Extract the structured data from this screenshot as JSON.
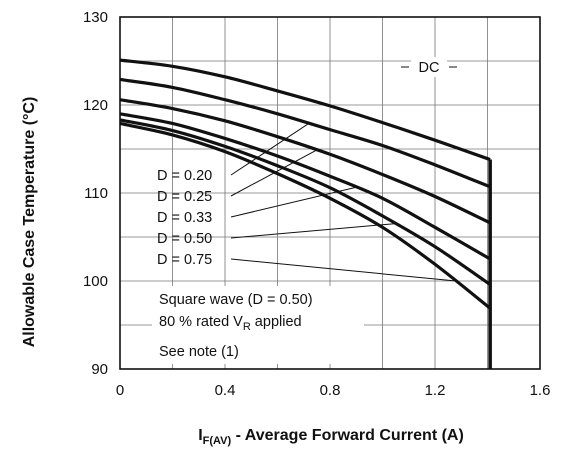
{
  "chart_data": {
    "type": "line",
    "xlabel": {
      "main": "I",
      "sub": "F(AV)",
      "rest": " - Average Forward Current (A)"
    },
    "ylabel": "Allowable Case Temperature (°C)",
    "xlim": [
      0,
      1.6
    ],
    "ylim": [
      90,
      130
    ],
    "xticks": [
      0,
      0.4,
      0.8,
      1.2,
      1.6
    ],
    "xtick_labels": [
      "0",
      "0.4",
      "0.8",
      "1.2",
      "1.6"
    ],
    "yticks": [
      90,
      100,
      110,
      120,
      130
    ],
    "ytick_labels": [
      "90",
      "100",
      "110",
      "120",
      "130"
    ],
    "grid": true,
    "legend": "none",
    "cutoff_x": 1.41,
    "series": [
      {
        "name": "DC",
        "x": [
          0,
          0.2,
          0.4,
          0.6,
          0.8,
          1.0,
          1.2,
          1.41
        ],
        "y": [
          125.1,
          124.4,
          123.2,
          121.6,
          119.9,
          118.0,
          116.0,
          113.8
        ]
      },
      {
        "name": "D = 0.20",
        "x": [
          0,
          0.2,
          0.4,
          0.6,
          0.8,
          1.0,
          1.2,
          1.41
        ],
        "y": [
          122.9,
          122.0,
          120.6,
          119.0,
          117.2,
          115.4,
          113.2,
          110.7
        ]
      },
      {
        "name": "D = 0.25",
        "x": [
          0,
          0.2,
          0.4,
          0.6,
          0.8,
          1.0,
          1.2,
          1.41
        ],
        "y": [
          120.6,
          119.6,
          118.2,
          116.4,
          114.4,
          112.1,
          109.6,
          106.6
        ]
      },
      {
        "name": "D = 0.33",
        "x": [
          0,
          0.2,
          0.4,
          0.6,
          0.8,
          1.0,
          1.2,
          1.41
        ],
        "y": [
          119.0,
          117.9,
          116.2,
          114.2,
          111.9,
          109.4,
          106.1,
          102.5
        ]
      },
      {
        "name": "D = 0.50",
        "x": [
          0,
          0.2,
          0.4,
          0.6,
          0.8,
          1.0,
          1.2,
          1.41
        ],
        "y": [
          118.3,
          117.1,
          115.3,
          113.1,
          110.6,
          107.4,
          103.9,
          99.6
        ]
      },
      {
        "name": "D = 0.75",
        "x": [
          0,
          0.2,
          0.4,
          0.6,
          0.8,
          1.0,
          1.2,
          1.41
        ],
        "y": [
          117.9,
          116.6,
          114.7,
          112.2,
          109.4,
          106.1,
          101.9,
          96.9
        ]
      }
    ],
    "annotations": {
      "dc": "DC",
      "duty_labels": [
        "D = 0.20",
        "D = 0.25",
        "D = 0.33",
        "D = 0.50",
        "D = 0.75"
      ],
      "note_line1": "Square wave (D = 0.50)",
      "note_line2_main": "80 % rated V",
      "note_line2_sub": "R",
      "note_line2_rest": " applied",
      "note_line3": "See note (1)"
    }
  }
}
